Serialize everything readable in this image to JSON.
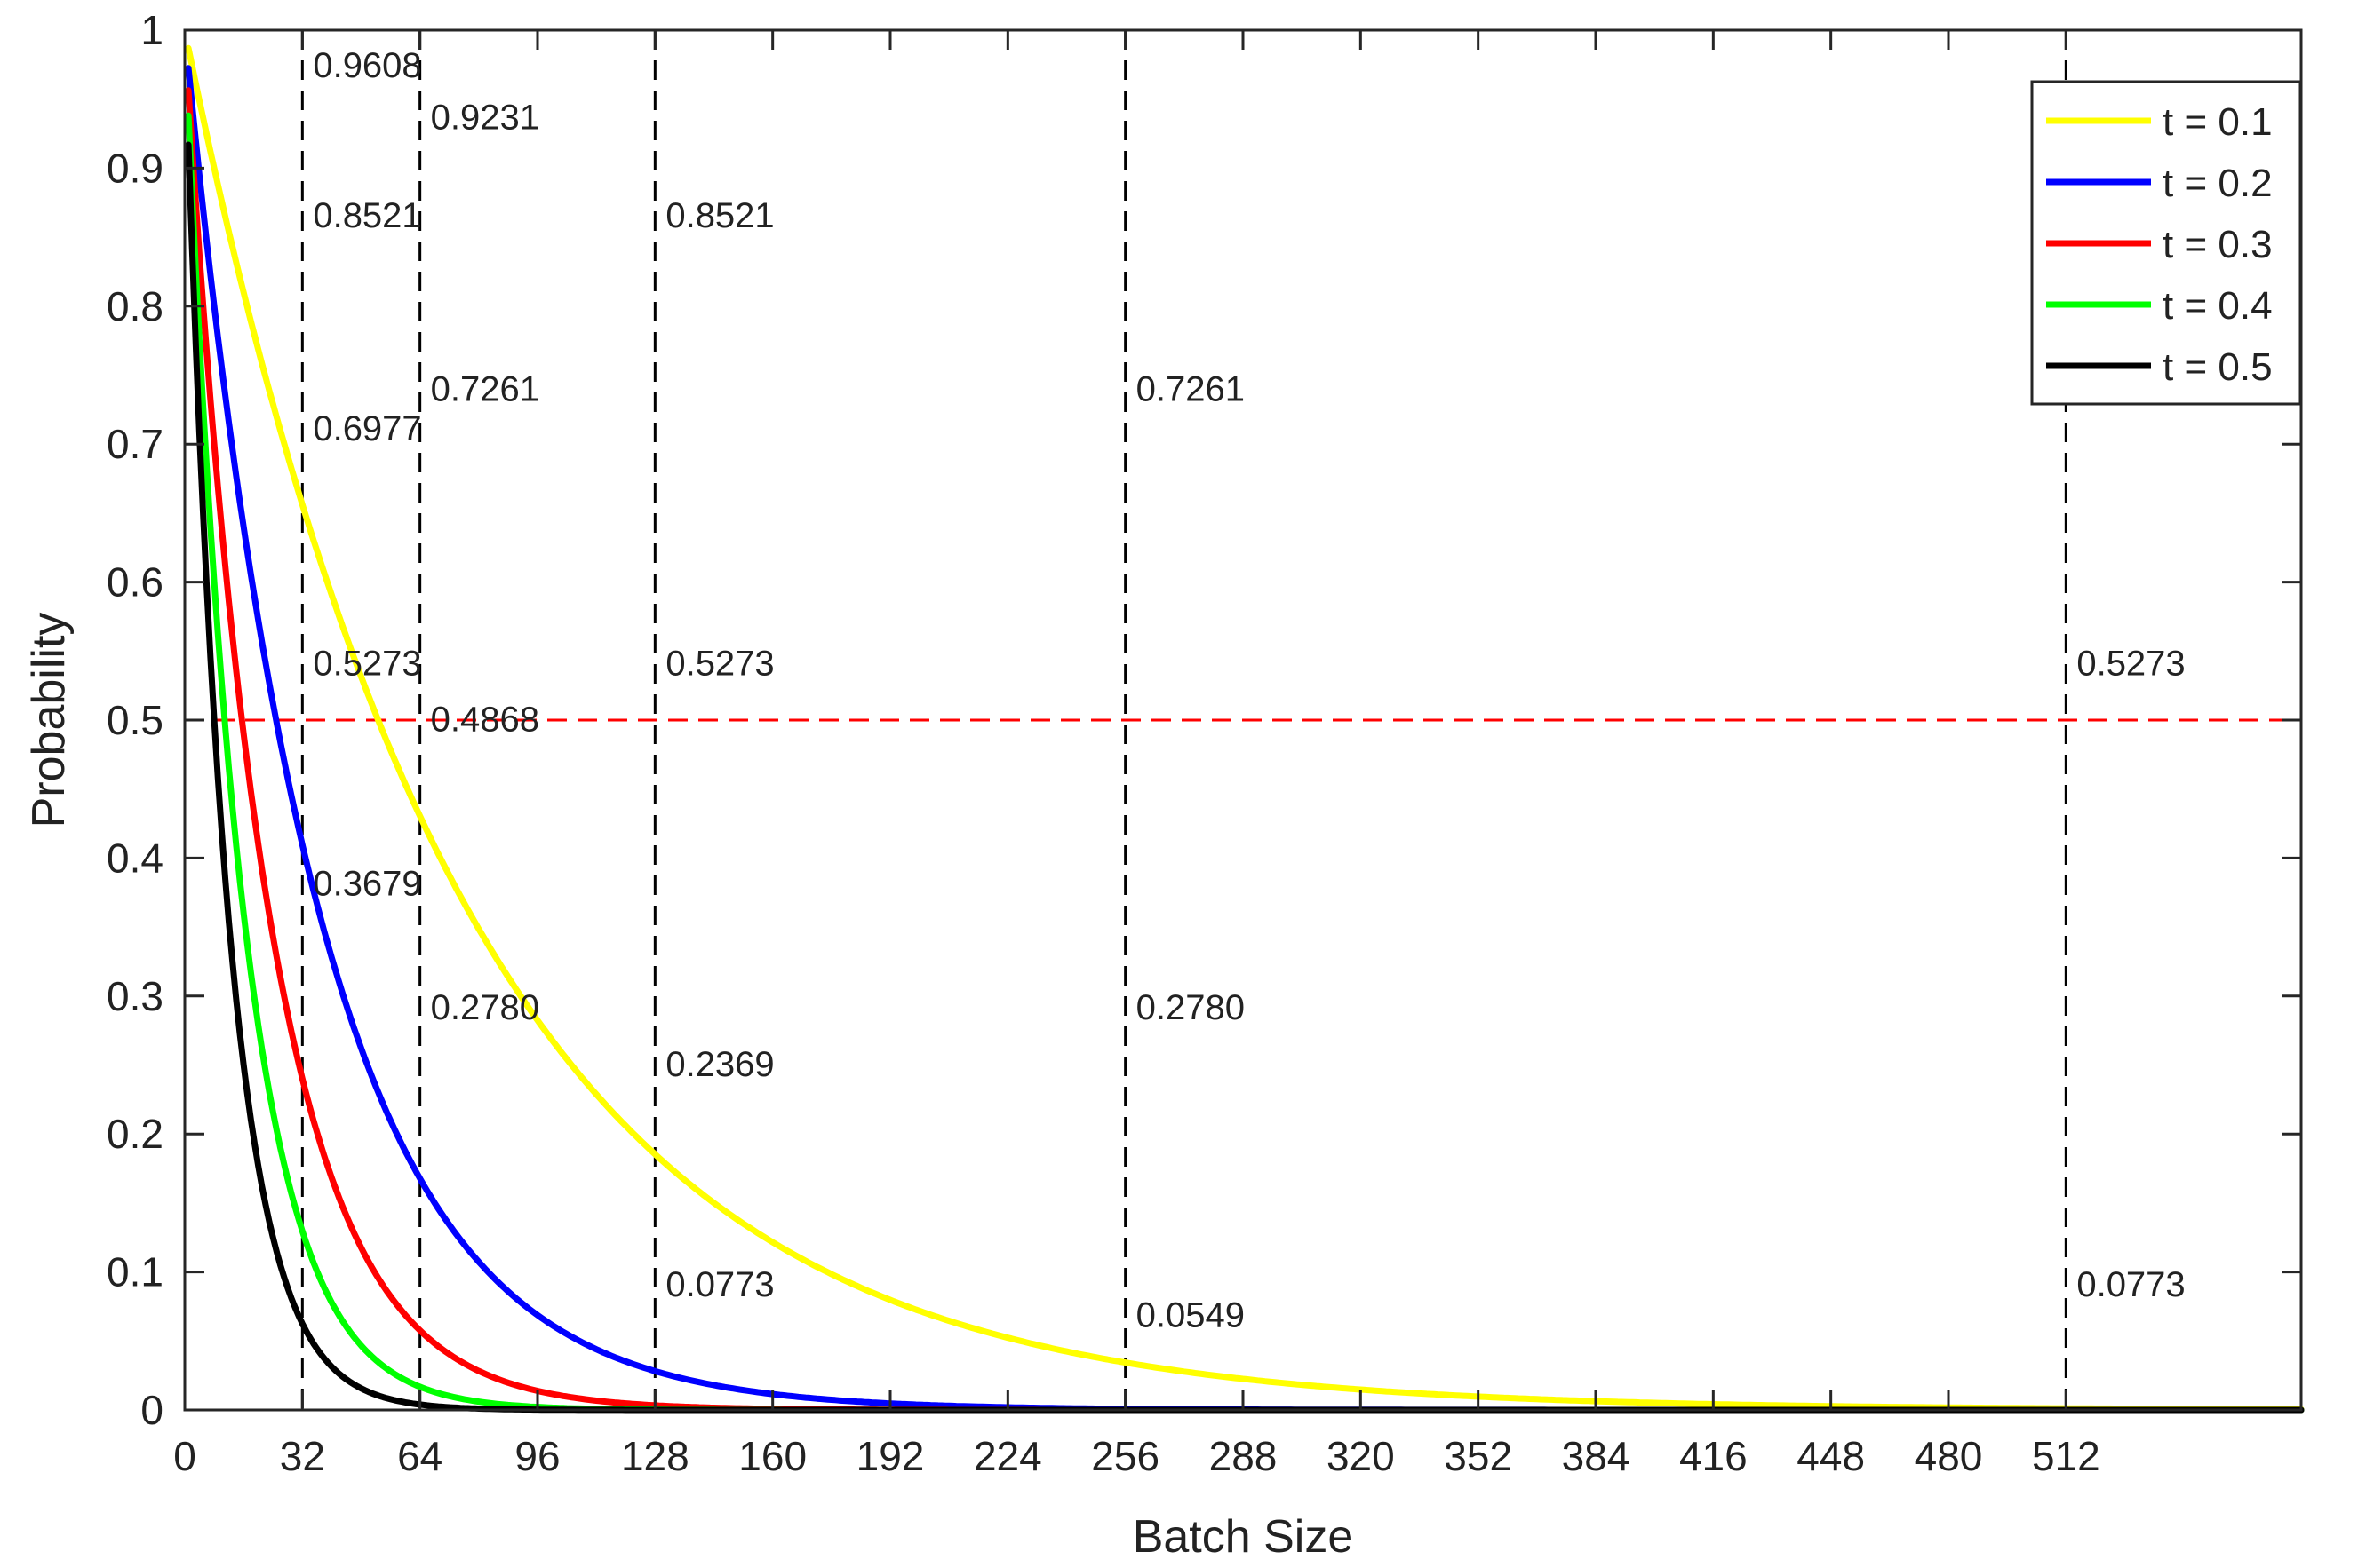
{
  "chart_data": {
    "type": "line",
    "title": "",
    "xlabel": "Batch Size",
    "ylabel": "Probability",
    "xlim": [
      0,
      576
    ],
    "ylim": [
      0,
      1
    ],
    "xticks": [
      0,
      32,
      64,
      96,
      128,
      160,
      192,
      224,
      256,
      288,
      320,
      352,
      384,
      416,
      448,
      480,
      512
    ],
    "xtick_labels": [
      "0",
      "32",
      "64",
      "96",
      "128",
      "160",
      "192",
      "224",
      "256",
      "288",
      "320",
      "352",
      "384",
      "416",
      "448",
      "480",
      "512"
    ],
    "yticks": [
      0,
      0.1,
      0.2,
      0.3,
      0.4,
      0.5,
      0.6,
      0.7,
      0.8,
      0.9,
      1
    ],
    "ytick_labels": [
      "0",
      "0.1",
      "0.2",
      "0.3",
      "0.4",
      "0.5",
      "0.6",
      "0.7",
      "0.8",
      "0.9",
      "1"
    ],
    "x_range_series": [
      1,
      576
    ],
    "series": [
      {
        "name": "t = 0.1",
        "color": "#ffff00",
        "formula": "(1-t)^(x/8)",
        "t": 0.1
      },
      {
        "name": "t = 0.2",
        "color": "#0000ff",
        "formula": "(1-t)^(x/8)",
        "t": 0.2
      },
      {
        "name": "t = 0.3",
        "color": "#ff0000",
        "formula": "(1-t)^(x/8)",
        "t": 0.3
      },
      {
        "name": "t = 0.4",
        "color": "#00ff00",
        "formula": "(1-t)^(x/8)",
        "t": 0.4
      },
      {
        "name": "t = 0.5",
        "color": "#000000",
        "formula": "(1-t)^(x/8)",
        "t": 0.5
      }
    ],
    "reference_lines": {
      "vertical_x": [
        32,
        64,
        128,
        256,
        512
      ],
      "vertical_color": "#000000",
      "horizontal_y": 0.5,
      "horizontal_color": "#ff0000"
    },
    "annotations": [
      {
        "x": 32,
        "y": 0.9608,
        "text": "0.9608"
      },
      {
        "x": 64,
        "y": 0.9231,
        "text": "0.9231"
      },
      {
        "x": 128,
        "y": 0.8521,
        "text": "0.8521"
      },
      {
        "x": 256,
        "y": 0.7261,
        "text": "0.7261"
      },
      {
        "x": 512,
        "y": 0.5273,
        "text": "0.5273"
      },
      {
        "x": 32,
        "y": 0.8521,
        "text": "0.8521"
      },
      {
        "x": 64,
        "y": 0.7261,
        "text": "0.7261"
      },
      {
        "x": 128,
        "y": 0.5273,
        "text": "0.5273"
      },
      {
        "x": 256,
        "y": 0.278,
        "text": "0.2780"
      },
      {
        "x": 512,
        "y": 0.0773,
        "text": "0.0773"
      },
      {
        "x": 32,
        "y": 0.6977,
        "text": "0.6977"
      },
      {
        "x": 64,
        "y": 0.4868,
        "text": "0.4868"
      },
      {
        "x": 128,
        "y": 0.2369,
        "text": "0.2369"
      },
      {
        "x": 256,
        "y": 0.0549,
        "text": "0.0549"
      },
      {
        "x": 32,
        "y": 0.5273,
        "text": "0.5273"
      },
      {
        "x": 64,
        "y": 0.278,
        "text": "0.2780"
      },
      {
        "x": 128,
        "y": 0.0773,
        "text": "0.0773"
      },
      {
        "x": 32,
        "y": 0.3679,
        "text": "0.3679"
      }
    ],
    "legend_position": "top-right",
    "grid": false
  }
}
